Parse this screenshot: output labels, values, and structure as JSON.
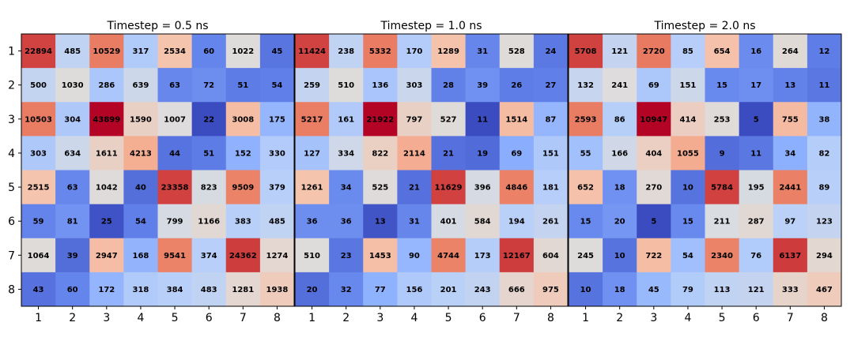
{
  "chart_data": [
    {
      "type": "heatmap",
      "title": "Timestep = 0.5 ns",
      "x": [
        "1",
        "2",
        "3",
        "4",
        "5",
        "6",
        "7",
        "8"
      ],
      "y": [
        "1",
        "2",
        "3",
        "4",
        "5",
        "6",
        "7",
        "8"
      ],
      "values": [
        [
          22894,
          485,
          10529,
          317,
          2534,
          60,
          1022,
          45
        ],
        [
          500,
          1030,
          286,
          639,
          63,
          72,
          51,
          54
        ],
        [
          10503,
          304,
          43899,
          1590,
          1007,
          22,
          3008,
          175
        ],
        [
          303,
          634,
          1611,
          4213,
          44,
          51,
          152,
          330
        ],
        [
          2515,
          63,
          1042,
          40,
          23358,
          823,
          9509,
          379
        ],
        [
          59,
          81,
          25,
          54,
          799,
          1166,
          383,
          485
        ],
        [
          1064,
          39,
          2947,
          168,
          9541,
          374,
          24362,
          1274
        ],
        [
          43,
          60,
          172,
          318,
          384,
          483,
          1281,
          1938
        ]
      ]
    },
    {
      "type": "heatmap",
      "title": "Timestep = 1.0 ns",
      "x": [
        "1",
        "2",
        "3",
        "4",
        "5",
        "6",
        "7",
        "8"
      ],
      "y": [
        "1",
        "2",
        "3",
        "4",
        "5",
        "6",
        "7",
        "8"
      ],
      "values": [
        [
          11424,
          238,
          5332,
          170,
          1289,
          31,
          528,
          24
        ],
        [
          259,
          510,
          136,
          303,
          28,
          39,
          26,
          27
        ],
        [
          5217,
          161,
          21922,
          797,
          527,
          11,
          1514,
          87
        ],
        [
          127,
          334,
          822,
          2114,
          21,
          19,
          69,
          151
        ],
        [
          1261,
          34,
          525,
          21,
          11629,
          396,
          4846,
          181
        ],
        [
          36,
          36,
          13,
          31,
          401,
          584,
          194,
          261
        ],
        [
          510,
          23,
          1453,
          90,
          4744,
          173,
          12167,
          604
        ],
        [
          20,
          32,
          77,
          156,
          201,
          243,
          666,
          975
        ]
      ]
    },
    {
      "type": "heatmap",
      "title": "Timestep = 2.0 ns",
      "x": [
        "1",
        "2",
        "3",
        "4",
        "5",
        "6",
        "7",
        "8"
      ],
      "y": [
        "1",
        "2",
        "3",
        "4",
        "5",
        "6",
        "7",
        "8"
      ],
      "values": [
        [
          5708,
          121,
          2720,
          85,
          654,
          16,
          264,
          12
        ],
        [
          132,
          241,
          69,
          151,
          15,
          17,
          13,
          11
        ],
        [
          2593,
          86,
          10947,
          414,
          253,
          5,
          755,
          38
        ],
        [
          55,
          166,
          404,
          1055,
          9,
          11,
          34,
          82
        ],
        [
          652,
          18,
          270,
          10,
          5784,
          195,
          2441,
          89
        ],
        [
          15,
          20,
          5,
          15,
          211,
          287,
          97,
          123
        ],
        [
          245,
          10,
          722,
          54,
          2340,
          76,
          6137,
          294
        ],
        [
          10,
          18,
          45,
          79,
          113,
          121,
          333,
          467
        ]
      ]
    }
  ]
}
